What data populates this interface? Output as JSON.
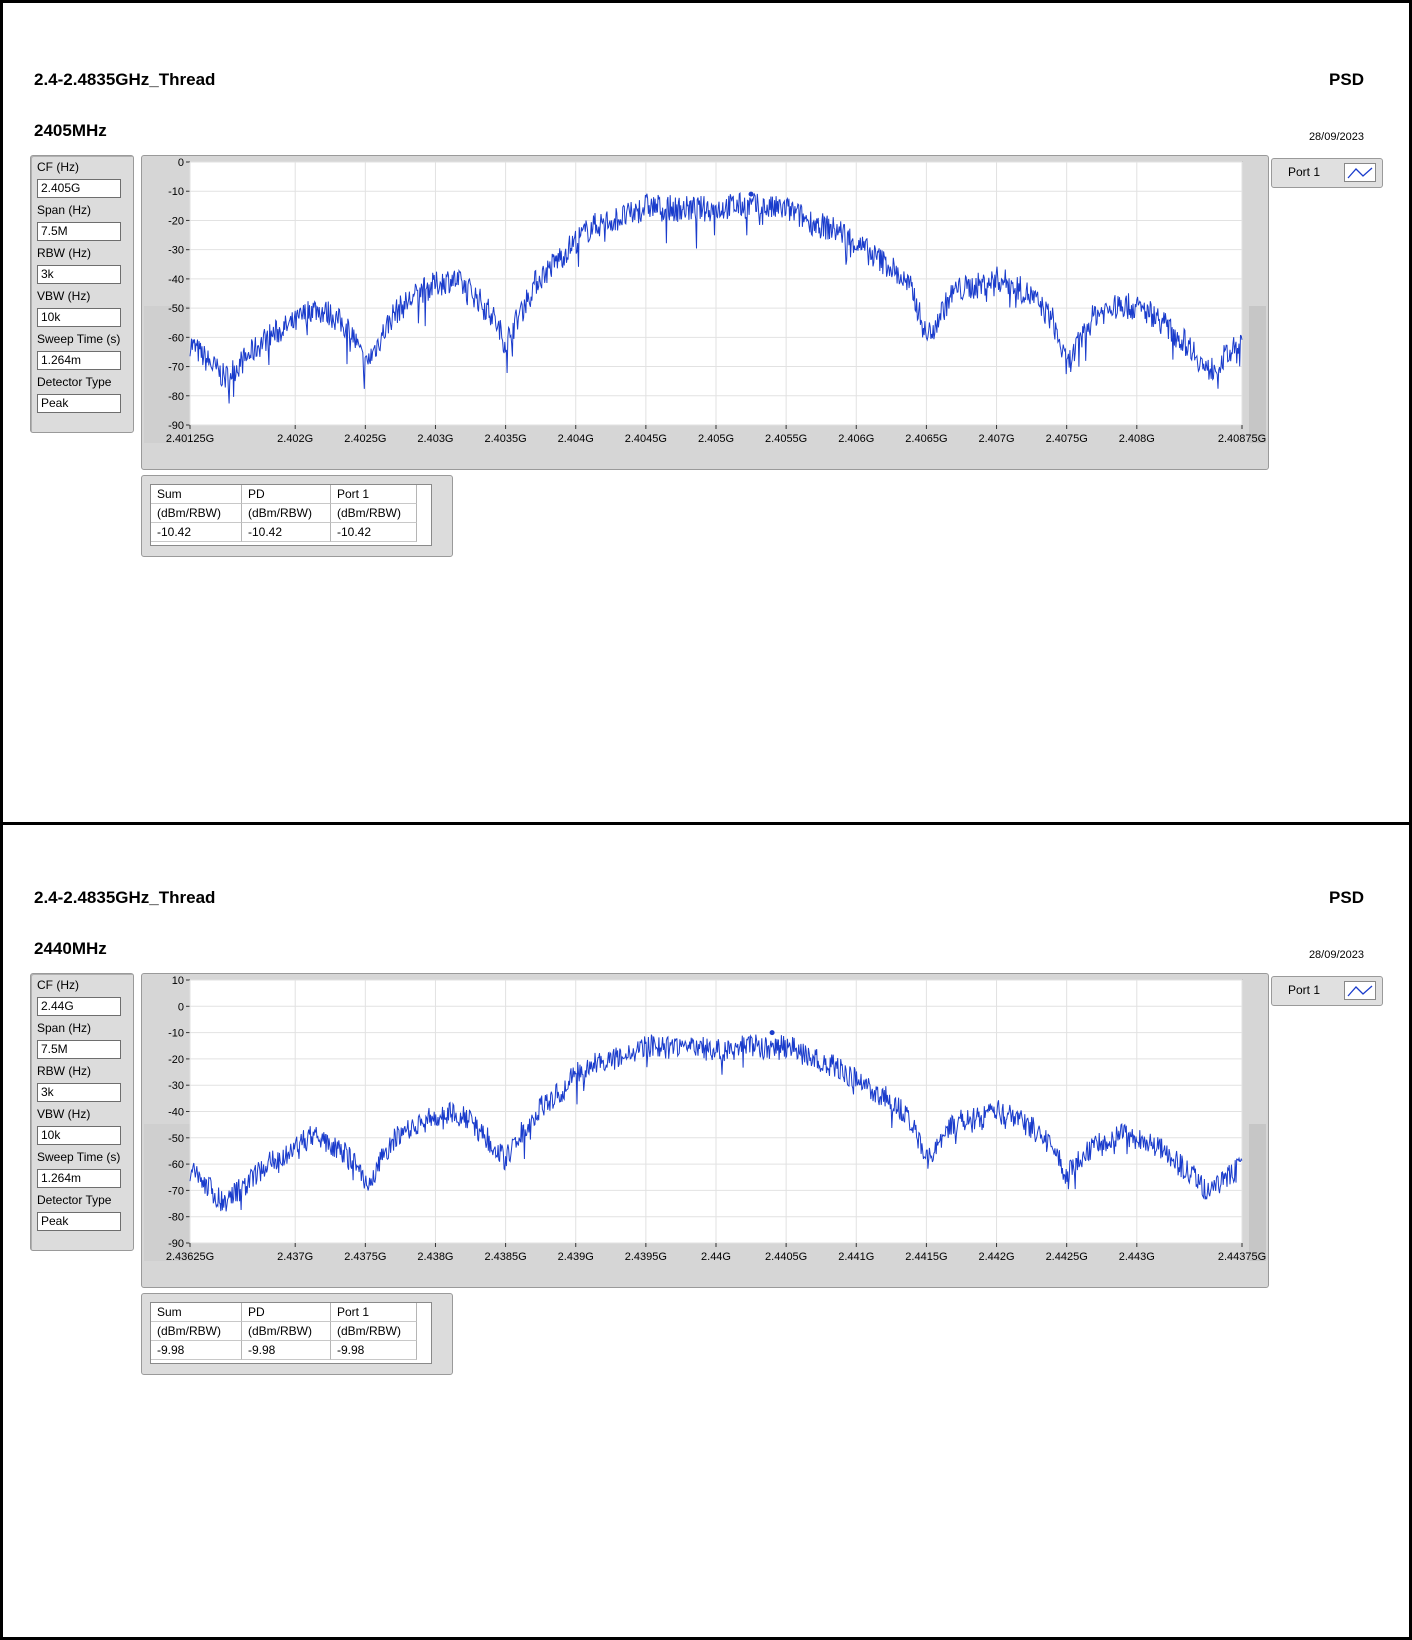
{
  "reports": [
    {
      "title": "2.4-2.4835GHz_Thread",
      "mode": "PSD",
      "frequency": "2405MHz",
      "date": "28/09/2023",
      "settings": [
        {
          "label": "CF (Hz)",
          "value": "2.405G"
        },
        {
          "label": "Span (Hz)",
          "value": "7.5M"
        },
        {
          "label": "RBW (Hz)",
          "value": "3k"
        },
        {
          "label": "VBW (Hz)",
          "value": "10k"
        },
        {
          "label": "Sweep Time (s)",
          "value": "1.264m"
        },
        {
          "label": "Detector Type",
          "value": "Peak"
        }
      ],
      "legend": {
        "label": "Port 1"
      },
      "table": {
        "headers": [
          "Sum",
          "PD",
          "Port 1"
        ],
        "units": [
          "(dBm/RBW)",
          "(dBm/RBW)",
          "(dBm/RBW)"
        ],
        "values": [
          "-10.42",
          "-10.42",
          "-10.42"
        ]
      },
      "chart_data": {
        "type": "line",
        "color": "#1a3ccc",
        "xlim": [
          2.40125,
          2.40875
        ],
        "ylim": [
          -90,
          0
        ],
        "yticks": [
          0,
          -10,
          -20,
          -30,
          -40,
          -50,
          -60,
          -70,
          -80,
          -90
        ],
        "xticks": [
          {
            "v": 2.40125,
            "label": "2.40125G"
          },
          {
            "v": 2.402,
            "label": "2.402G"
          },
          {
            "v": 2.4025,
            "label": "2.4025G"
          },
          {
            "v": 2.403,
            "label": "2.403G"
          },
          {
            "v": 2.4035,
            "label": "2.4035G"
          },
          {
            "v": 2.404,
            "label": "2.404G"
          },
          {
            "v": 2.4045,
            "label": "2.4045G"
          },
          {
            "v": 2.405,
            "label": "2.405G"
          },
          {
            "v": 2.4055,
            "label": "2.4055G"
          },
          {
            "v": 2.406,
            "label": "2.406G"
          },
          {
            "v": 2.4065,
            "label": "2.4065G"
          },
          {
            "v": 2.407,
            "label": "2.407G"
          },
          {
            "v": 2.4075,
            "label": "2.4075G"
          },
          {
            "v": 2.408,
            "label": "2.408G"
          },
          {
            "v": 2.40875,
            "label": "2.40875G"
          }
        ],
        "series": [
          {
            "x": [
              2.40125,
              2.4015,
              2.4018,
              2.402,
              2.40212,
              2.40225,
              2.4024,
              2.4025,
              2.4027,
              2.4029,
              2.403,
              2.40312,
              2.40325,
              2.4034,
              2.4035,
              2.4037,
              2.4039,
              2.404,
              2.40412,
              2.40425,
              2.4044,
              2.4045,
              2.4047,
              2.4049,
              2.405,
              2.40512,
              2.40525,
              2.4054,
              2.4055,
              2.4057,
              2.4059,
              2.406,
              2.40612,
              2.40625,
              2.4064,
              2.4065,
              2.4067,
              2.4069,
              2.407,
              2.40712,
              2.40725,
              2.4074,
              2.4075,
              2.4077,
              2.4079,
              2.408,
              2.40812,
              2.40825,
              2.4084,
              2.4085,
              2.4087,
              2.40875
            ],
            "y": [
              -62,
              -74,
              -60,
              -55,
              -50,
              -52,
              -58,
              -70,
              -52,
              -44,
              -42,
              -40,
              -44,
              -52,
              -62,
              -42,
              -32,
              -27,
              -22,
              -20,
              -18,
              -15,
              -16,
              -16,
              -16,
              -15,
              -15,
              -16,
              -16,
              -21,
              -24,
              -28,
              -32,
              -36,
              -44,
              -60,
              -44,
              -42,
              -40,
              -42,
              -46,
              -54,
              -70,
              -52,
              -49,
              -50,
              -52,
              -58,
              -64,
              -72,
              -64,
              -62
            ]
          }
        ],
        "peak_marker": {
          "x": 2.40525,
          "y": -11
        }
      }
    },
    {
      "title": "2.4-2.4835GHz_Thread",
      "mode": "PSD",
      "frequency": "2440MHz",
      "date": "28/09/2023",
      "settings": [
        {
          "label": "CF (Hz)",
          "value": "2.44G"
        },
        {
          "label": "Span (Hz)",
          "value": "7.5M"
        },
        {
          "label": "RBW (Hz)",
          "value": "3k"
        },
        {
          "label": "VBW (Hz)",
          "value": "10k"
        },
        {
          "label": "Sweep Time (s)",
          "value": "1.264m"
        },
        {
          "label": "Detector Type",
          "value": "Peak"
        }
      ],
      "legend": {
        "label": "Port 1"
      },
      "table": {
        "headers": [
          "Sum",
          "PD",
          "Port 1"
        ],
        "units": [
          "(dBm/RBW)",
          "(dBm/RBW)",
          "(dBm/RBW)"
        ],
        "values": [
          "-9.98",
          "-9.98",
          "-9.98"
        ]
      },
      "chart_data": {
        "type": "line",
        "color": "#1a3ccc",
        "xlim": [
          2.43625,
          2.44375
        ],
        "ylim": [
          -90,
          10
        ],
        "yticks": [
          10,
          0,
          -10,
          -20,
          -30,
          -40,
          -50,
          -60,
          -70,
          -80,
          -90
        ],
        "xticks": [
          {
            "v": 2.43625,
            "label": "2.43625G"
          },
          {
            "v": 2.437,
            "label": "2.437G"
          },
          {
            "v": 2.4375,
            "label": "2.4375G"
          },
          {
            "v": 2.438,
            "label": "2.438G"
          },
          {
            "v": 2.4385,
            "label": "2.4385G"
          },
          {
            "v": 2.439,
            "label": "2.439G"
          },
          {
            "v": 2.4395,
            "label": "2.4395G"
          },
          {
            "v": 2.44,
            "label": "2.44G"
          },
          {
            "v": 2.4405,
            "label": "2.4405G"
          },
          {
            "v": 2.441,
            "label": "2.441G"
          },
          {
            "v": 2.4415,
            "label": "2.4415G"
          },
          {
            "v": 2.442,
            "label": "2.442G"
          },
          {
            "v": 2.4425,
            "label": "2.4425G"
          },
          {
            "v": 2.443,
            "label": "2.443G"
          },
          {
            "v": 2.44375,
            "label": "2.44375G"
          }
        ],
        "series": [
          {
            "x": [
              2.43625,
              2.4365,
              2.4368,
              2.437,
              2.43712,
              2.43725,
              2.4374,
              2.4375,
              2.4377,
              2.4379,
              2.438,
              2.43812,
              2.43825,
              2.4384,
              2.4385,
              2.4387,
              2.4389,
              2.439,
              2.43912,
              2.43925,
              2.4394,
              2.4395,
              2.4397,
              2.4399,
              2.44,
              2.44012,
              2.44025,
              2.4404,
              2.4405,
              2.4407,
              2.4409,
              2.441,
              2.44112,
              2.44125,
              2.4414,
              2.4415,
              2.4417,
              2.4419,
              2.442,
              2.44212,
              2.44225,
              2.4424,
              2.4425,
              2.4427,
              2.4429,
              2.443,
              2.44312,
              2.44325,
              2.4434,
              2.4435,
              2.4437,
              2.44375
            ],
            "y": [
              -62,
              -75,
              -60,
              -54,
              -49,
              -52,
              -58,
              -68,
              -51,
              -44,
              -42,
              -40,
              -44,
              -52,
              -58,
              -41,
              -32,
              -26,
              -22,
              -20,
              -18,
              -15,
              -16,
              -16,
              -17,
              -16,
              -15,
              -16,
              -15,
              -20,
              -24,
              -28,
              -32,
              -36,
              -44,
              -58,
              -44,
              -42,
              -40,
              -42,
              -46,
              -54,
              -64,
              -52,
              -49,
              -50,
              -52,
              -58,
              -64,
              -70,
              -63,
              -61
            ]
          }
        ],
        "peak_marker": {
          "x": 2.4404,
          "y": -10
        }
      }
    }
  ]
}
